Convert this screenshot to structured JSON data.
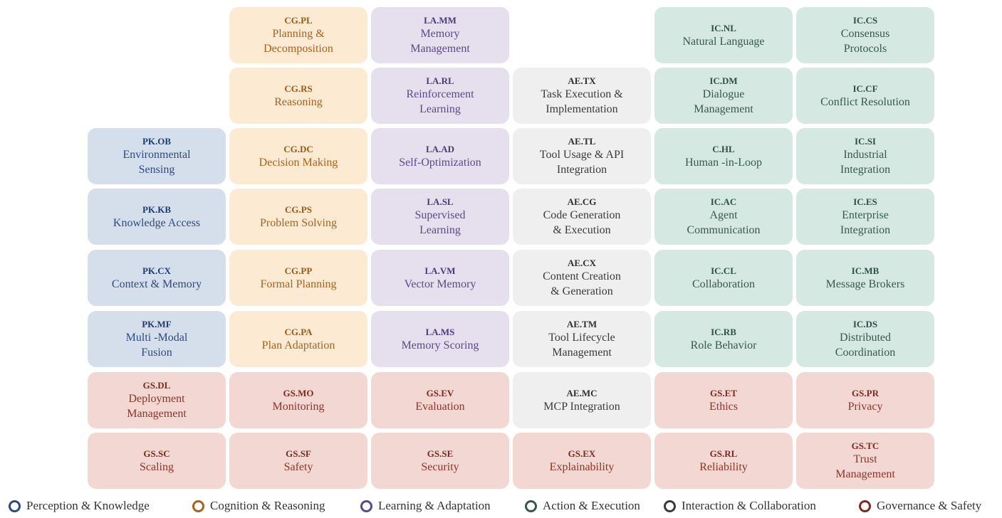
{
  "colors": {
    "pk": "#2c4a80",
    "cg": "#a86220",
    "la": "#5a4a86",
    "ae": "#35594f",
    "ic": "#3a3a3a",
    "gs": "#7d2a20"
  },
  "legend": [
    {
      "label": "Perception & Knowledge",
      "color": "#2c4a80"
    },
    {
      "label": "Cognition & Reasoning",
      "color": "#a86220"
    },
    {
      "label": "Learning & Adaptation",
      "color": "#5a4a86"
    },
    {
      "label": "Action & Execution",
      "color": "#35594f"
    },
    {
      "label": "Interaction & Collaboration",
      "color": "#3a3a3a"
    },
    {
      "label": "Governance & Safety",
      "color": "#7d2a20"
    }
  ],
  "tiles": [
    {
      "code": "CG.PL",
      "title": "Planning &\nDecomposition",
      "group": "cg"
    },
    {
      "code": "LA.MM",
      "title": "Memory\nManagement",
      "group": "la"
    },
    {
      "code": "IC.NL",
      "title": "Natural Language",
      "group": "ic"
    },
    {
      "code": "IC.CS",
      "title": "Consensus\nProtocols",
      "group": "ic"
    },
    {
      "code": "CG.RS",
      "title": "Reasoning",
      "group": "cg"
    },
    {
      "code": "LA.RL",
      "title": "Reinforcement\nLearning",
      "group": "la"
    },
    {
      "code": "AE.TX",
      "title": "Task Execution &\nImplementation",
      "group": "ae"
    },
    {
      "code": "IC.DM",
      "title": "Dialogue\nManagement",
      "group": "ic"
    },
    {
      "code": "IC.CF",
      "title": "Conflict Resolution",
      "group": "ic"
    },
    {
      "code": "PK.OB",
      "title": "Environmental\nSensing",
      "group": "pk"
    },
    {
      "code": "CG.DC",
      "title": "Decision Making",
      "group": "cg"
    },
    {
      "code": "LA.AD",
      "title": "Self-Optimization",
      "group": "la"
    },
    {
      "code": "AE.TL",
      "title": "Tool Usage & API\nIntegration",
      "group": "ae"
    },
    {
      "code": "C.HL",
      "title": "Human  -in-Loop",
      "group": "ic"
    },
    {
      "code": "IC.SI",
      "title": "Industrial\nIntegration",
      "group": "ic"
    },
    {
      "code": "PK.KB",
      "title": "Knowledge Access",
      "group": "pk"
    },
    {
      "code": "CG.PS",
      "title": "Problem Solving",
      "group": "cg"
    },
    {
      "code": "LA.SL",
      "title": "Supervised\nLearning",
      "group": "la"
    },
    {
      "code": "AE.CG",
      "title": "Code Generation\n& Execution",
      "group": "ae"
    },
    {
      "code": "IC.AC",
      "title": "Agent\nCommunication",
      "group": "ic"
    },
    {
      "code": "IC.ES",
      "title": "Enterprise\nIntegration",
      "group": "ic"
    },
    {
      "code": "PK.CX",
      "title": "Context & Memory",
      "group": "pk"
    },
    {
      "code": "CG.PP",
      "title": "Formal Planning",
      "group": "cg"
    },
    {
      "code": "LA.VM",
      "title": "Vector Memory",
      "group": "la"
    },
    {
      "code": "AE.CX",
      "title": "Content Creation\n& Generation",
      "group": "ae"
    },
    {
      "code": "IC.CL",
      "title": "Collaboration",
      "group": "ic"
    },
    {
      "code": "IC.MB",
      "title": "Message Brokers",
      "group": "ic"
    },
    {
      "code": "PK.MF",
      "title": "Multi -Modal\nFusion",
      "group": "pk"
    },
    {
      "code": "CG.PA",
      "title": "Plan Adaptation",
      "group": "cg"
    },
    {
      "code": "LA.MS",
      "title": "Memory Scoring",
      "group": "la"
    },
    {
      "code": "AE.TM",
      "title": "Tool Lifecycle\nManagement",
      "group": "ae"
    },
    {
      "code": "IC.RB",
      "title": "Role Behavior",
      "group": "ic"
    },
    {
      "code": "IC.DS",
      "title": "Distributed\nCoordination",
      "group": "ic"
    },
    {
      "code": "GS.DL",
      "title": "Deployment\nManagement",
      "group": "gs"
    },
    {
      "code": "GS.MO",
      "title": "Monitoring",
      "group": "gs"
    },
    {
      "code": "GS.EV",
      "title": "Evaluation",
      "group": "gs"
    },
    {
      "code": "AE.MC",
      "title": "MCP Integration",
      "group": "ae"
    },
    {
      "code": "GS.ET",
      "title": "Ethics",
      "group": "gs"
    },
    {
      "code": "GS.PR",
      "title": "Privacy",
      "group": "gs"
    },
    {
      "code": "GS.SC",
      "title": "Scaling",
      "group": "gs"
    },
    {
      "code": "GS.SF",
      "title": "Safety",
      "group": "gs"
    },
    {
      "code": "GS.SE",
      "title": "Security",
      "group": "gs"
    },
    {
      "code": "GS.EX",
      "title": "Explainability",
      "group": "gs"
    },
    {
      "code": "GS.RL",
      "title": "Reliability",
      "group": "gs"
    },
    {
      "code": "GS.TC",
      "title": "Trust\nManagement",
      "group": "gs"
    }
  ]
}
